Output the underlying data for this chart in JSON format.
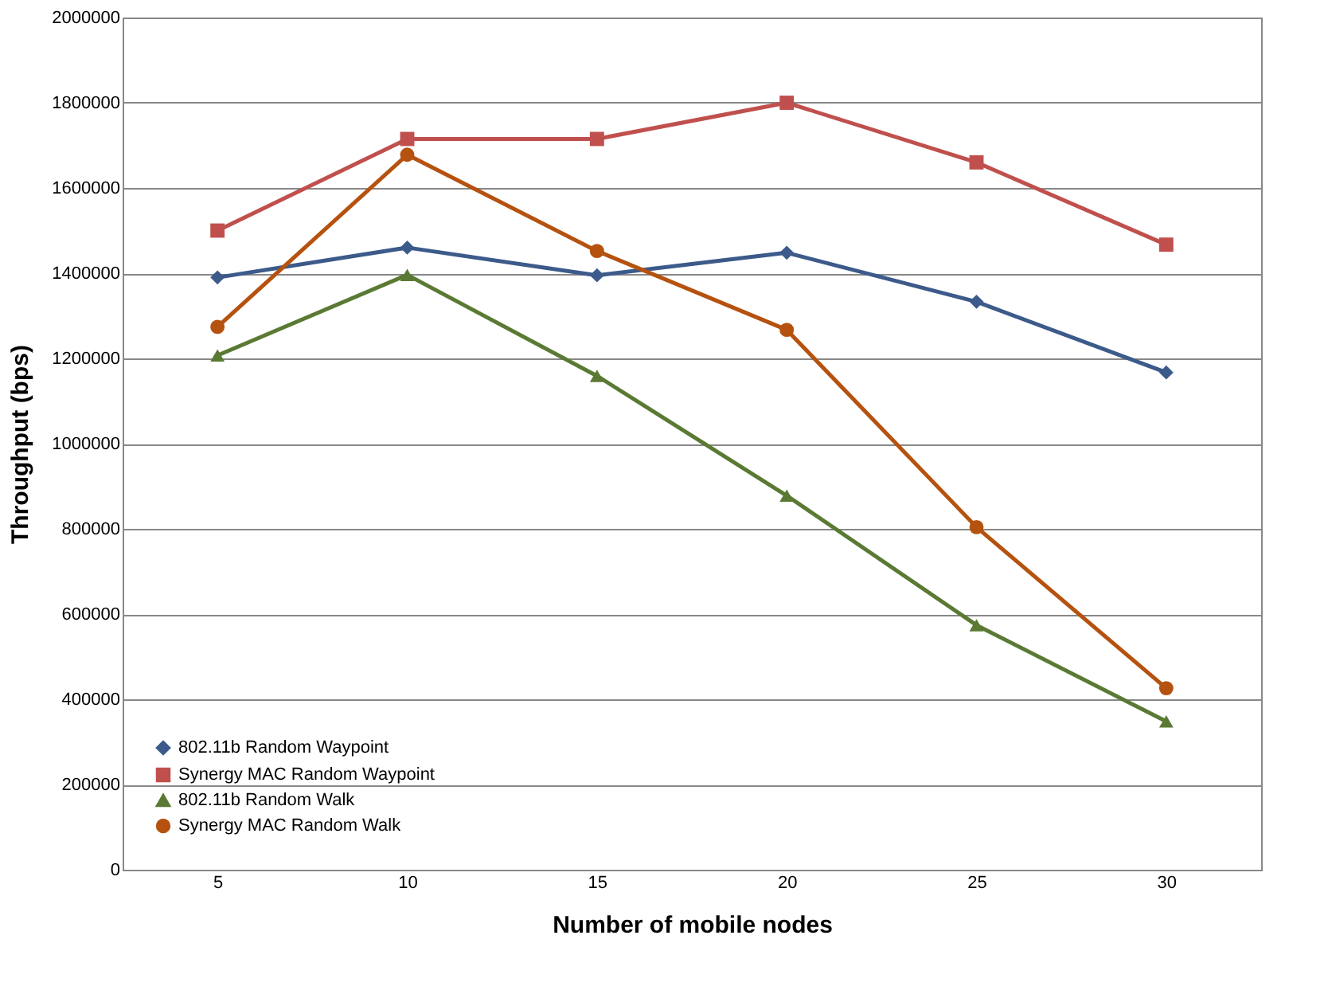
{
  "chart_data": {
    "type": "line",
    "xlabel": "Number of mobile nodes",
    "ylabel": "Throughput (bps)",
    "categories": [
      "5",
      "10",
      "15",
      "20",
      "25",
      "30"
    ],
    "ylim": [
      0,
      2000000
    ],
    "yticks": [
      0,
      200000,
      400000,
      600000,
      800000,
      1000000,
      1200000,
      1400000,
      1600000,
      1800000,
      2000000
    ],
    "grid": "y",
    "legend": "bottom left",
    "line_style": "solid",
    "series": [
      {
        "name": "802.11b Random Waypoint",
        "color": "#3c5a8a",
        "marker": "diamond",
        "values": [
          1390000,
          1460000,
          1395000,
          1448000,
          1333000,
          1167000
        ]
      },
      {
        "name": "Synergy MAC Random Waypoint",
        "color": "#c0504d",
        "marker": "square",
        "values": [
          1500000,
          1715000,
          1715000,
          1800000,
          1660000,
          1467000
        ]
      },
      {
        "name": "802.11b Random Walk",
        "color": "#5a7a34",
        "marker": "triangle",
        "values": [
          1207000,
          1396000,
          1159000,
          878000,
          574000,
          348000
        ]
      },
      {
        "name": "Synergy MAC Random Walk",
        "color": "#b5520f",
        "marker": "circle",
        "values": [
          1274000,
          1678000,
          1452000,
          1267000,
          804000,
          426000
        ]
      }
    ]
  }
}
